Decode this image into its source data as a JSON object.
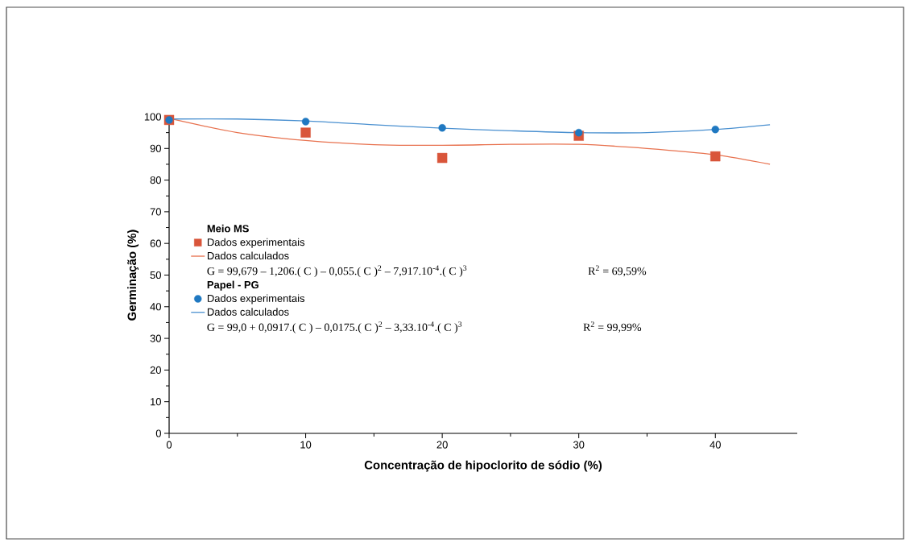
{
  "chart_data": {
    "type": "scatter",
    "xlabel": "Concentração de hipoclorito de sódio (%)",
    "ylabel": "Germinação (%)",
    "x": [
      0,
      10,
      20,
      30,
      40
    ],
    "xlim": [
      0,
      46
    ],
    "xticks": [
      0,
      10,
      20,
      30,
      40
    ],
    "ylim": [
      0,
      100
    ],
    "yticks": [
      0,
      10,
      20,
      30,
      40,
      50,
      60,
      70,
      80,
      90,
      100
    ],
    "grid": false,
    "legend": "left",
    "series": [
      {
        "name": "Dados experimentais",
        "type": "scatter",
        "marker": "square",
        "color": "#d9553a",
        "values": [
          99,
          95,
          87,
          94,
          87.5
        ]
      },
      {
        "name": "Dados calculados",
        "type": "line",
        "marker": "none",
        "color": "#e8724f",
        "x": [
          0,
          5,
          10,
          15,
          20,
          25,
          30,
          35,
          40,
          44
        ],
        "values": [
          99.5,
          95,
          92.5,
          91.2,
          91,
          91.3,
          91.3,
          90,
          88,
          85
        ]
      },
      {
        "name": "Dados experimentais",
        "type": "scatter",
        "marker": "circle",
        "color": "#1f78c1",
        "values": [
          99,
          98.5,
          96.5,
          95,
          96
        ]
      },
      {
        "name": "Dados calculados",
        "type": "line",
        "marker": "none",
        "color": "#4a90d0",
        "x": [
          0,
          5,
          10,
          15,
          20,
          25,
          30,
          35,
          40,
          44
        ],
        "values": [
          99.3,
          99.3,
          98.7,
          97.5,
          96.4,
          95.6,
          95,
          95,
          96,
          97.5
        ]
      }
    ],
    "annotations": [
      "Meio MS",
      "G = 99,679 – 1,206.( C ) – 0,055.( C )$^{2}$ – 7,917.10$^{-4}$.( C )$^{3}$",
      "R$^{2}$ = 69,59%",
      "Papel - PG",
      "G = 99,0 + 0,0917.( C ) – 0,0175.( C )$^{2}$ – 3,33.10$^{-4}$.( C )$^{3}$",
      "R$^{2}$ = 99,99%"
    ]
  }
}
